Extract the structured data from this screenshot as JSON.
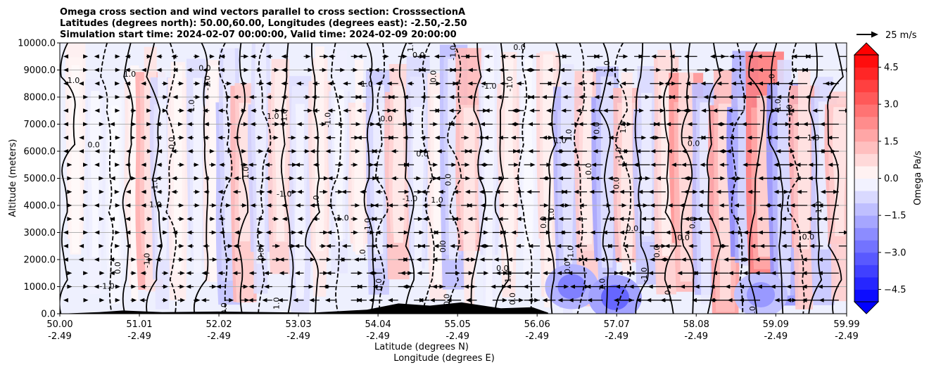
{
  "chart_data": {
    "type": "heatmap",
    "title_lines": [
      "Omega cross section and wind vectors parallel to cross section: CrosssectionA",
      "Latitudes (degrees north): 50.00,60.00, Longitudes (degrees east): -2.50,-2.50",
      "Simulation start time: 2024-02-07 00:00:00, Valid time: 2024-02-09 20:00:00"
    ],
    "ylabel": "Altitude (meters)",
    "xlabel_lines": [
      "Latitude (degrees N)",
      "Longitude (degrees E)"
    ],
    "ylim": [
      0,
      10000
    ],
    "yticks": [
      "0.0",
      "1000.0",
      "2000.0",
      "3000.0",
      "4000.0",
      "5000.0",
      "6000.0",
      "7000.0",
      "8000.0",
      "9000.0",
      "10000.0"
    ],
    "xlim": [
      50.0,
      59.99
    ],
    "xticks": [
      {
        "lat": "50.00",
        "lon": "-2.49"
      },
      {
        "lat": "51.01",
        "lon": "-2.49"
      },
      {
        "lat": "52.02",
        "lon": "-2.49"
      },
      {
        "lat": "53.03",
        "lon": "-2.49"
      },
      {
        "lat": "54.04",
        "lon": "-2.49"
      },
      {
        "lat": "55.05",
        "lon": "-2.49"
      },
      {
        "lat": "56.06",
        "lon": "-2.49"
      },
      {
        "lat": "57.07",
        "lon": "-2.49"
      },
      {
        "lat": "58.08",
        "lon": "-2.49"
      },
      {
        "lat": "59.09",
        "lon": "-2.49"
      },
      {
        "lat": "59.99",
        "lon": "-2.49"
      }
    ],
    "grid": true,
    "colorbar": {
      "label": "Omega Pa/s",
      "range": [
        -5.0,
        5.0
      ],
      "ticks": [
        "4.5",
        "3.0",
        "1.5",
        "0.0",
        "−1.5",
        "−3.0",
        "−4.5"
      ],
      "colors": {
        "negative": "#0000ff",
        "neutral": "#ffffff",
        "positive": "#ff0000"
      }
    },
    "vector_key": {
      "label": "25 m/s"
    },
    "contour_labels": [
      "0.0",
      "-1.0",
      "1.0"
    ],
    "bands": [
      {
        "lat": 50.2,
        "omega": 0.4
      },
      {
        "lat": 50.45,
        "omega": -0.5
      },
      {
        "lat": 50.7,
        "omega": -0.3
      },
      {
        "lat": 50.95,
        "omega": 0.6
      },
      {
        "lat": 51.15,
        "omega": 2.0
      },
      {
        "lat": 51.3,
        "omega": -1.0
      },
      {
        "lat": 51.5,
        "omega": 0.5
      },
      {
        "lat": 51.75,
        "omega": -0.8
      },
      {
        "lat": 51.95,
        "omega": 0.6
      },
      {
        "lat": 52.15,
        "omega": -1.5
      },
      {
        "lat": 52.35,
        "omega": 1.8
      },
      {
        "lat": 52.55,
        "omega": -1.2
      },
      {
        "lat": 52.8,
        "omega": 1.2
      },
      {
        "lat": 53.05,
        "omega": -0.8
      },
      {
        "lat": 53.3,
        "omega": 0.8
      },
      {
        "lat": 53.55,
        "omega": -0.6
      },
      {
        "lat": 53.8,
        "omega": 0.7
      },
      {
        "lat": 54.05,
        "omega": -1.3
      },
      {
        "lat": 54.3,
        "omega": 1.5
      },
      {
        "lat": 54.55,
        "omega": -0.9
      },
      {
        "lat": 54.8,
        "omega": 0.6
      },
      {
        "lat": 55.0,
        "omega": -1.6
      },
      {
        "lat": 55.2,
        "omega": 1.7
      },
      {
        "lat": 55.45,
        "omega": -0.7
      },
      {
        "lat": 55.7,
        "omega": 0.9
      },
      {
        "lat": 55.95,
        "omega": -0.4
      },
      {
        "lat": 56.2,
        "omega": 1.0
      },
      {
        "lat": 56.45,
        "omega": -1.8
      },
      {
        "lat": 56.7,
        "omega": 1.3
      },
      {
        "lat": 56.95,
        "omega": -2.2
      },
      {
        "lat": 57.2,
        "omega": 1.6
      },
      {
        "lat": 57.45,
        "omega": -1.4
      },
      {
        "lat": 57.7,
        "omega": 1.2
      },
      {
        "lat": 57.95,
        "omega": 2.6
      },
      {
        "lat": 58.2,
        "omega": -1.6
      },
      {
        "lat": 58.45,
        "omega": 2.4
      },
      {
        "lat": 58.7,
        "omega": -2.8
      },
      {
        "lat": 58.95,
        "omega": 3.2
      },
      {
        "lat": 59.2,
        "omega": -2.6
      },
      {
        "lat": 59.45,
        "omega": 2.0
      },
      {
        "lat": 59.7,
        "omega": -1.4
      },
      {
        "lat": 59.9,
        "omega": 1.8
      }
    ],
    "low_level_blue": [
      {
        "lat": 56.5,
        "alt": 1000,
        "omega": -2.5
      },
      {
        "lat": 57.05,
        "alt": 600,
        "omega": -3.0
      },
      {
        "lat": 58.9,
        "alt": 700,
        "omega": -2.0
      }
    ],
    "terrain": [
      {
        "lat": 50.5,
        "alt": 60
      },
      {
        "lat": 50.8,
        "alt": 120
      },
      {
        "lat": 51.3,
        "alt": 60
      },
      {
        "lat": 52.0,
        "alt": 80
      },
      {
        "lat": 53.2,
        "alt": 40
      },
      {
        "lat": 53.9,
        "alt": 150
      },
      {
        "lat": 54.3,
        "alt": 380
      },
      {
        "lat": 54.7,
        "alt": 300
      },
      {
        "lat": 55.1,
        "alt": 420
      },
      {
        "lat": 55.6,
        "alt": 200
      },
      {
        "lat": 56.0,
        "alt": 240
      },
      {
        "lat": 56.2,
        "alt": 40
      }
    ],
    "contour_lines": [
      {
        "lat": 50.1,
        "style": "solid"
      },
      {
        "lat": 50.6,
        "style": "dashed"
      },
      {
        "lat": 50.9,
        "style": "solid"
      },
      {
        "lat": 51.2,
        "style": "solid"
      },
      {
        "lat": 51.4,
        "style": "dashed"
      },
      {
        "lat": 51.8,
        "style": "solid"
      },
      {
        "lat": 52.1,
        "style": "dashed"
      },
      {
        "lat": 52.3,
        "style": "solid"
      },
      {
        "lat": 52.6,
        "style": "dashed"
      },
      {
        "lat": 52.9,
        "style": "solid"
      },
      {
        "lat": 53.2,
        "style": "solid"
      },
      {
        "lat": 53.5,
        "style": "dashed"
      },
      {
        "lat": 53.9,
        "style": "solid"
      },
      {
        "lat": 54.1,
        "style": "dashed"
      },
      {
        "lat": 54.4,
        "style": "solid"
      },
      {
        "lat": 54.7,
        "style": "dashed"
      },
      {
        "lat": 55.0,
        "style": "dashed"
      },
      {
        "lat": 55.3,
        "style": "solid"
      },
      {
        "lat": 55.6,
        "style": "solid"
      },
      {
        "lat": 55.9,
        "style": "dashed"
      },
      {
        "lat": 56.3,
        "style": "solid"
      },
      {
        "lat": 56.6,
        "style": "dashed"
      },
      {
        "lat": 56.9,
        "style": "solid"
      },
      {
        "lat": 57.15,
        "style": "dashed"
      },
      {
        "lat": 57.4,
        "style": "solid"
      },
      {
        "lat": 57.75,
        "style": "solid"
      },
      {
        "lat": 58.0,
        "style": "solid"
      },
      {
        "lat": 58.3,
        "style": "solid"
      },
      {
        "lat": 58.6,
        "style": "dashed"
      },
      {
        "lat": 58.85,
        "style": "solid"
      },
      {
        "lat": 59.1,
        "style": "solid"
      },
      {
        "lat": 59.35,
        "style": "dashed"
      },
      {
        "lat": 59.6,
        "style": "solid"
      },
      {
        "lat": 59.85,
        "style": "solid"
      }
    ]
  }
}
